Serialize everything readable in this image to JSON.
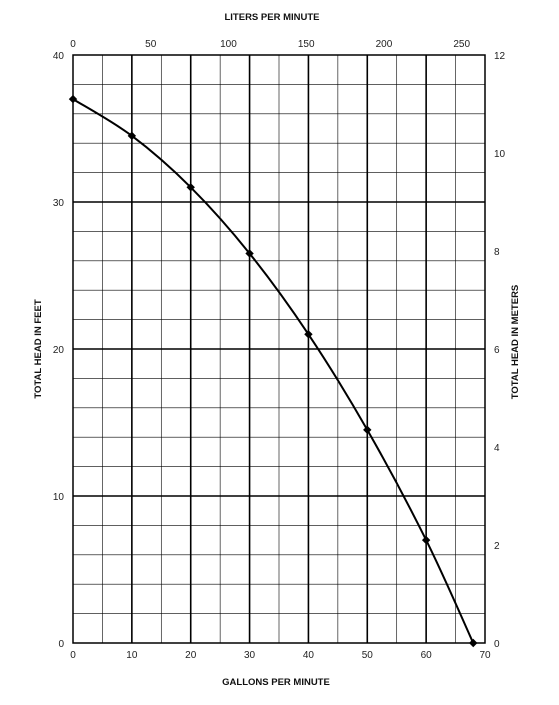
{
  "chart_data": {
    "type": "line",
    "title": "",
    "xlabel": "GALLONS PER MINUTE",
    "ylabel": "TOTAL HEAD IN FEET",
    "x2label": "LITERS PER MINUTE",
    "y2label": "TOTAL HEAD IN METERS",
    "xlim": [
      0,
      70
    ],
    "ylim": [
      0,
      40
    ],
    "x2lim": [
      0,
      265
    ],
    "y2lim": [
      0,
      12
    ],
    "x_ticks": [
      0,
      10,
      20,
      30,
      40,
      50,
      60,
      70
    ],
    "y_ticks": [
      0,
      10,
      20,
      30,
      40
    ],
    "x2_ticks": [
      0,
      50,
      100,
      150,
      200,
      250
    ],
    "y2_ticks": [
      0,
      2,
      4,
      6,
      8,
      10,
      12
    ],
    "grid": true,
    "series": [
      {
        "x": [
          0,
          10,
          20,
          30,
          40,
          50,
          60,
          68
        ],
        "y": [
          37,
          34.5,
          31,
          26.5,
          21,
          14.5,
          7,
          0
        ],
        "color": "#000000",
        "marker": "diamond"
      }
    ]
  }
}
